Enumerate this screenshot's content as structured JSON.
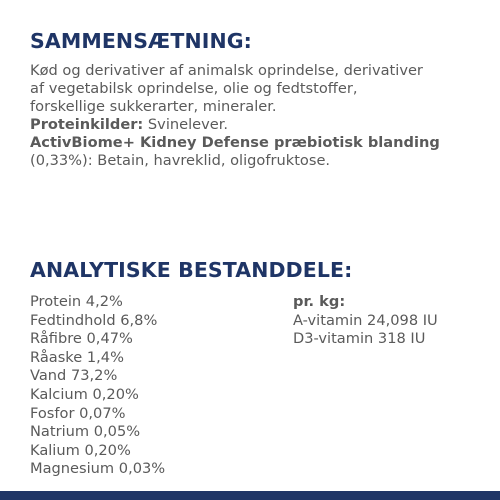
{
  "composition": {
    "heading": "SAMMENSÆTNING:",
    "line1": "Kød og derivativer af animalsk oprindelse, derivativer",
    "line2": "af vegetabilsk oprindelse, olie og fedtstoffer,",
    "line3": "forskellige sukkerarter, mineraler.",
    "protein_label": "Proteinkilder:",
    "protein_value": " Svinelever.",
    "activbiome_label": "ActivBiome+ Kidney Defense præbiotisk blanding",
    "activbiome_value": "(0,33%): Betain, havreklid, oligofruktose."
  },
  "analytic": {
    "heading": "ANALYTISKE BESTANDDELE:",
    "items": [
      "Protein 4,2%",
      "Fedtindhold 6,8%",
      "Råfibre 0,47%",
      "Råaske 1,4%",
      "Vand 73,2%",
      "Kalcium 0,20%",
      "Fosfor 0,07%",
      "Natrium 0,05%",
      "Kalium 0,20%",
      "Magnesium 0,03%"
    ],
    "per_kg_label": "pr. kg:",
    "vitamins": [
      "A-vitamin 24,098 IU",
      "D3-vitamin 318 IU"
    ]
  },
  "colors": {
    "heading": "#1f3566",
    "body_text": "#5a5a5a",
    "bottom_bar": "#1f3566"
  }
}
